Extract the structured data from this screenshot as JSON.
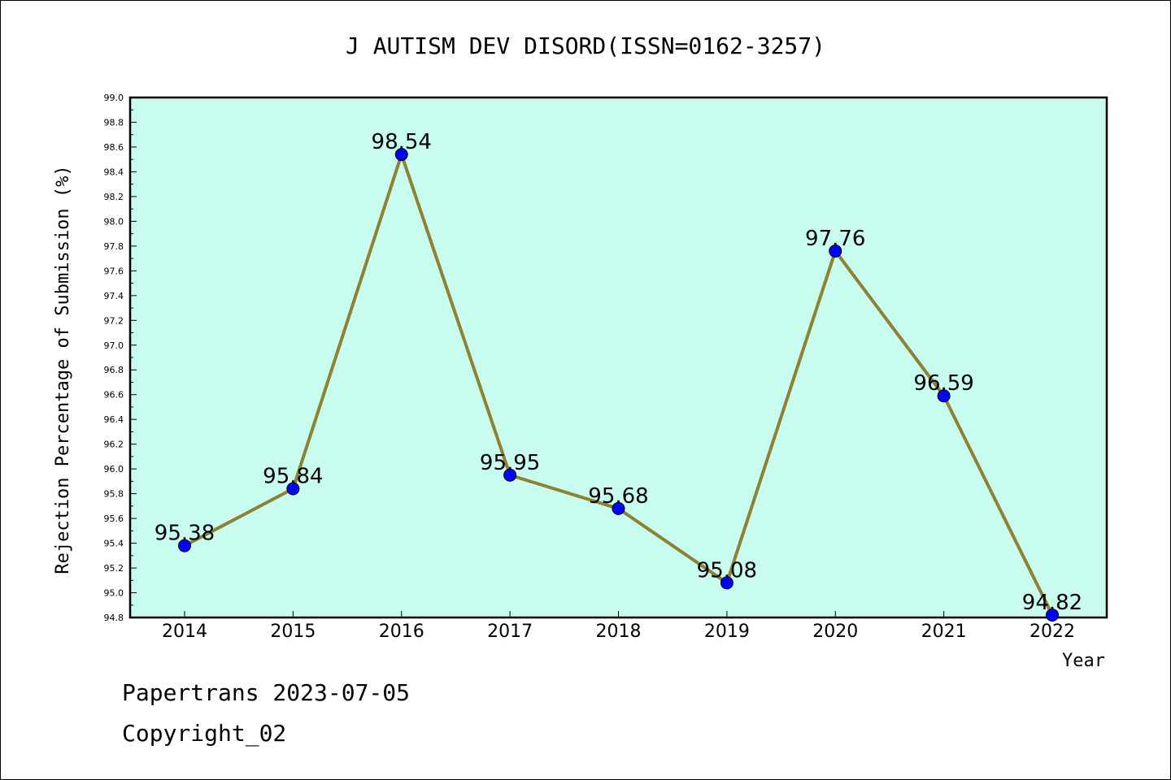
{
  "chart_data": {
    "type": "line",
    "title": "J AUTISM DEV DISORD(ISSN=0162-3257)",
    "xlabel": "Year",
    "ylabel": "Rejection Percentage of Submission (%)",
    "categories": [
      "2014",
      "2015",
      "2016",
      "2017",
      "2018",
      "2019",
      "2020",
      "2021",
      "2022"
    ],
    "values": [
      95.38,
      95.84,
      98.54,
      95.95,
      95.68,
      95.08,
      97.76,
      96.59,
      94.82
    ],
    "value_labels": [
      "95.38",
      "95.84",
      "98.54",
      "95.95",
      "95.68",
      "95.08",
      "97.76",
      "96.59",
      "94.82"
    ],
    "ylim": [
      94.8,
      99.0
    ],
    "ytick_step": 0.2,
    "ytick_labels": [
      "94.8",
      "95.0",
      "95.2",
      "95.4",
      "95.6",
      "95.8",
      "96.0",
      "96.2",
      "96.4",
      "96.6",
      "96.8",
      "97.0",
      "97.2",
      "97.4",
      "97.6",
      "97.8",
      "98.0",
      "98.2",
      "98.4",
      "98.6",
      "98.8",
      "99.0"
    ],
    "grid": false,
    "legend": "none",
    "colors": {
      "plot_background": "#c8fcee",
      "line": "#8c8232",
      "marker": "#0000ff"
    }
  },
  "footer": {
    "line1": "Papertrans 2023-07-05",
    "line2": "Copyright_02"
  }
}
